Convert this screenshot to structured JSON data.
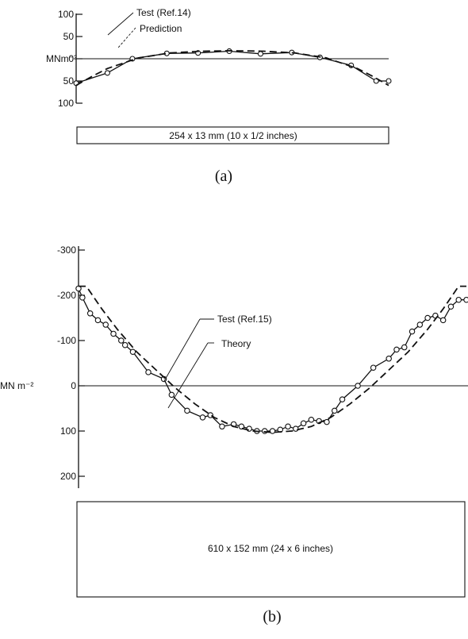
{
  "chart_data": [
    {
      "type": "line",
      "panel_label": "(a)",
      "ylabel": "MNm⁻²",
      "ylim": [
        -100,
        100
      ],
      "y_ticks": [
        {
          "v": 100,
          "label": "100"
        },
        {
          "v": 50,
          "label": "50"
        },
        {
          "v": 0,
          "label": "0"
        },
        {
          "v": -50,
          "label": "50"
        },
        {
          "v": -100,
          "label": "100"
        }
      ],
      "xlim": [
        0,
        1
      ],
      "series": [
        {
          "name": "Test (Ref.14)",
          "style": "solid-markers",
          "x": [
            0.0,
            0.1,
            0.18,
            0.29,
            0.39,
            0.49,
            0.59,
            0.69,
            0.78,
            0.88,
            0.96,
            1.0
          ],
          "y": [
            55,
            32,
            0,
            -12,
            -13,
            -17,
            -11,
            -14,
            -3,
            15,
            50,
            50
          ]
        },
        {
          "name": "Prediction",
          "style": "dashed",
          "x": [
            0.0,
            0.05,
            0.1,
            0.2,
            0.3,
            0.4,
            0.5,
            0.6,
            0.7,
            0.8,
            0.9,
            0.95,
            1.0
          ],
          "y": [
            60,
            40,
            22,
            -2,
            -13,
            -17,
            -18,
            -17,
            -13,
            -2,
            22,
            40,
            60
          ]
        }
      ],
      "specimen_label": "254 x 13 mm  (10 x 1/2 inches)"
    },
    {
      "type": "line",
      "panel_label": "(b)",
      "ylabel": "MN m⁻²",
      "ylim": [
        -300,
        200
      ],
      "y_ticks": [
        {
          "v": -300,
          "label": "-300"
        },
        {
          "v": -200,
          "label": "-200"
        },
        {
          "v": -100,
          "label": "-100"
        },
        {
          "v": 0,
          "label": "0"
        },
        {
          "v": 100,
          "label": "100"
        },
        {
          "v": 200,
          "label": "200"
        }
      ],
      "xlim": [
        0,
        1
      ],
      "series": [
        {
          "name": "Test (Ref.15)",
          "style": "solid-markers",
          "x": [
            0.0,
            0.01,
            0.03,
            0.05,
            0.07,
            0.09,
            0.11,
            0.12,
            0.14,
            0.18,
            0.22,
            0.24,
            0.28,
            0.32,
            0.34,
            0.37,
            0.4,
            0.42,
            0.44,
            0.46,
            0.48,
            0.5,
            0.52,
            0.54,
            0.56,
            0.58,
            0.6,
            0.62,
            0.64,
            0.66,
            0.68,
            0.72,
            0.76,
            0.8,
            0.82,
            0.84,
            0.86,
            0.88,
            0.9,
            0.92,
            0.94,
            0.96,
            0.98,
            1.0
          ],
          "y": [
            -215,
            -195,
            -160,
            -145,
            -135,
            -115,
            -100,
            -90,
            -75,
            -30,
            -15,
            20,
            55,
            70,
            65,
            90,
            85,
            90,
            95,
            100,
            100,
            100,
            97,
            90,
            95,
            83,
            75,
            78,
            80,
            55,
            30,
            0,
            -40,
            -60,
            -80,
            -85,
            -120,
            -135,
            -150,
            -155,
            -145,
            -175,
            -190,
            -190
          ]
        },
        {
          "name": "Theory",
          "style": "dashed",
          "x": [
            0.0,
            0.02,
            0.06,
            0.1,
            0.15,
            0.2,
            0.25,
            0.3,
            0.35,
            0.4,
            0.45,
            0.5,
            0.55,
            0.6,
            0.65,
            0.7,
            0.75,
            0.8,
            0.85,
            0.9,
            0.94,
            0.98,
            1.0
          ],
          "y": [
            -220,
            -220,
            -170,
            -125,
            -75,
            -35,
            5,
            40,
            70,
            90,
            100,
            103,
            100,
            90,
            70,
            40,
            5,
            -35,
            -75,
            -125,
            -170,
            -220,
            -220
          ]
        }
      ],
      "specimen_label": "610 x 152 mm  (24 x 6 inches)"
    }
  ]
}
